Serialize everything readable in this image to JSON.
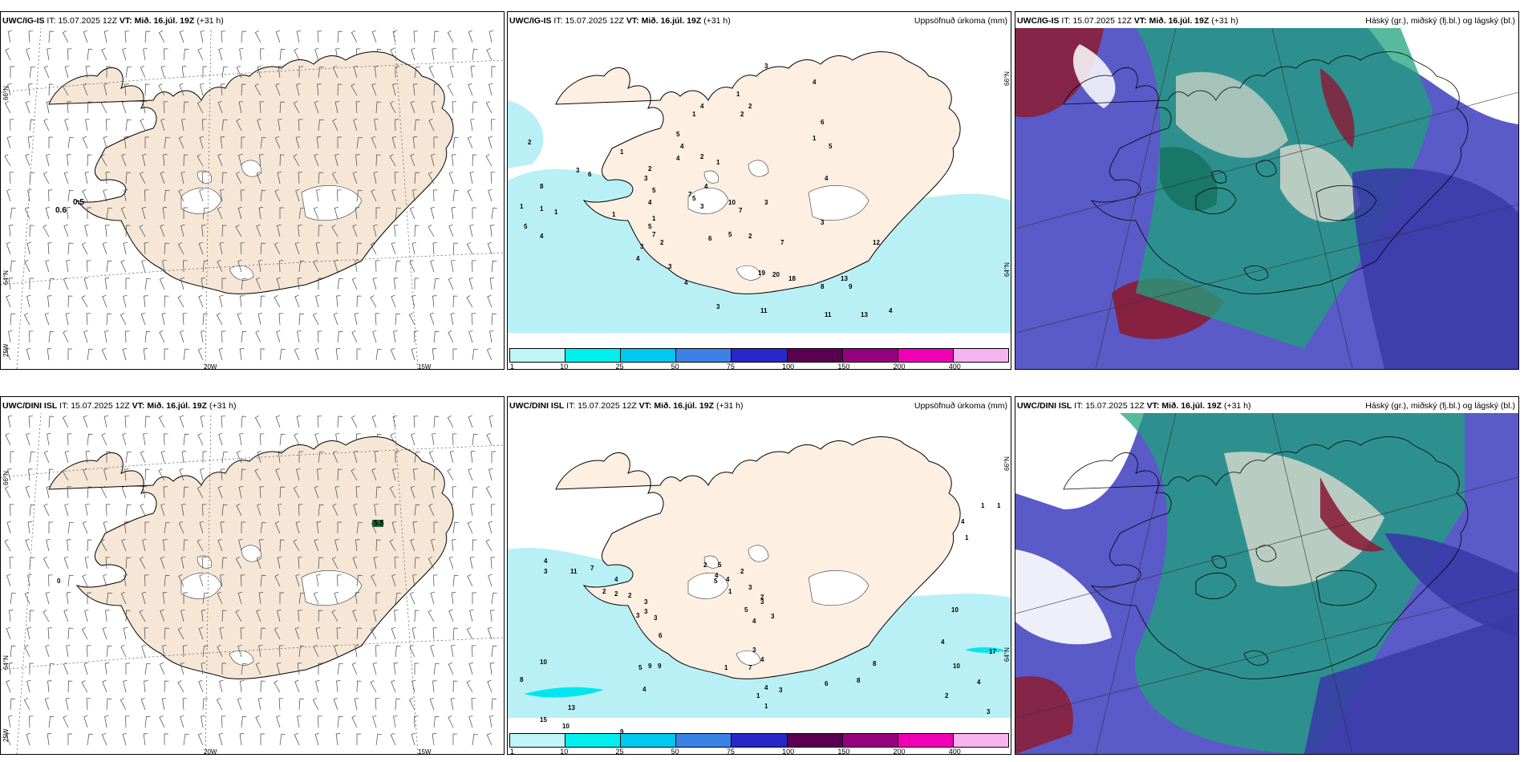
{
  "panels": [
    {
      "model": "UWC/IG-IS",
      "it_label": "IT:",
      "it": "15.07.2025 12Z",
      "vt_label": "VT:",
      "vt": "Mið. 16.júl. 19Z",
      "lead": "(+31 h)",
      "right": ""
    },
    {
      "model": "UWC/IG-IS",
      "it_label": "IT:",
      "it": "15.07.2025 12Z",
      "vt_label": "VT:",
      "vt": "Mið. 16.júl. 19Z",
      "lead": "(+31 h)",
      "right": "Uppsöfnuð úrkoma (mm)"
    },
    {
      "model": "UWC/IG-IS",
      "it_label": "IT:",
      "it": "15.07.2025 12Z",
      "vt_label": "VT:",
      "vt": "Mið. 16.júl. 19Z",
      "lead": "(+31 h)",
      "right": "Háský (gr.), miðský (fj.bl.) og lágský (bl.)"
    },
    {
      "model": "UWC/DINI ISL",
      "it_label": "IT:",
      "it": "15.07.2025 12Z",
      "vt_label": "VT:",
      "vt": "Mið. 16.júl. 19Z",
      "lead": "(+31 h)",
      "right": ""
    },
    {
      "model": "UWC/DINI ISL",
      "it_label": "IT:",
      "it": "15.07.2025 12Z",
      "vt_label": "VT:",
      "vt": "Mið. 16.júl. 19Z",
      "lead": "(+31 h)",
      "right": "Uppsöfnuð úrkoma (mm)"
    },
    {
      "model": "UWC/DINI ISL",
      "it_label": "IT:",
      "it": "15.07.2025 12Z",
      "vt_label": "VT:",
      "vt": "Mið. 16.júl. 19Z",
      "lead": "(+31 h)",
      "right": "Háský (gr.), miðský (fj.bl.) og lágský (bl.)"
    }
  ],
  "axes": {
    "lat66": "66°N",
    "lat64": "64°N",
    "lon25": "25W",
    "lon20": "20W",
    "lon15": "15W",
    "lat66r": "66°N",
    "lat64r": "64°N"
  },
  "wind_labels_top": [
    "0.5",
    "0.6"
  ],
  "wind_labels_bottom": [
    "5.5",
    "0"
  ],
  "colorbar": {
    "ticks": [
      "1",
      "10",
      "25",
      "50",
      "75",
      "100",
      "150",
      "200",
      "400"
    ],
    "colors": [
      "#bff5f7",
      "#00f0f0",
      "#00c8f0",
      "#3c82e6",
      "#2828c8",
      "#5a0050",
      "#96007e",
      "#f000b4",
      "#f5b4f0"
    ]
  },
  "precip_top": [
    "2",
    "8",
    "1",
    "1",
    "1",
    "5",
    "4",
    "1",
    "3",
    "6",
    "3",
    "4",
    "5",
    "7",
    "5",
    "4",
    "3",
    "10",
    "7",
    "3",
    "1",
    "2",
    "4",
    "2",
    "1",
    "5",
    "4",
    "1",
    "4",
    "2",
    "2",
    "1",
    "3",
    "4",
    "1",
    "6",
    "5",
    "4",
    "7",
    "6",
    "5",
    "2",
    "8",
    "9",
    "13",
    "12",
    "19",
    "20",
    "18",
    "4",
    "3",
    "11",
    "11",
    "13",
    "4",
    "3",
    "4",
    "3",
    "2",
    "7",
    "5",
    "3",
    "1"
  ],
  "precip_bottom": [
    "4",
    "3",
    "11",
    "7",
    "4",
    "2",
    "2",
    "2",
    "3",
    "3",
    "3",
    "3",
    "6",
    "2",
    "5",
    "4",
    "4",
    "1",
    "2",
    "3",
    "2",
    "5",
    "3",
    "5",
    "4",
    "3",
    "8",
    "10",
    "5",
    "9",
    "9",
    "4",
    "3",
    "4",
    "7",
    "4",
    "3",
    "1",
    "6",
    "8",
    "17",
    "10",
    "4",
    "2",
    "3",
    "4",
    "8",
    "10",
    "15",
    "13",
    "10",
    "9",
    "10",
    "1",
    "1",
    "4",
    "1",
    "1",
    "1"
  ],
  "colors": {
    "land": "#f5e6d6",
    "sea_precip": "#b9f0f5",
    "sea_light": "#d8f8fa",
    "cloud_high": "#1a9e78",
    "cloud_mid": "#4a4ac8",
    "cloud_low": "#8a1a3c",
    "green": "#3ee0a0"
  }
}
